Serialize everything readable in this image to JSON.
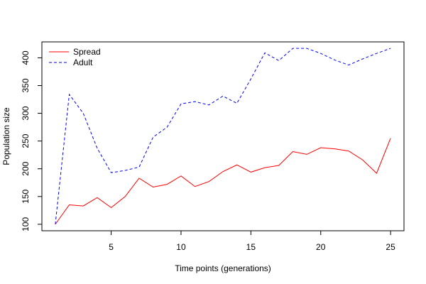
{
  "chart_data": {
    "type": "line",
    "title": "",
    "xlabel": "Time points (generations)",
    "ylabel": "Population size",
    "xlim": [
      0.04,
      25.96
    ],
    "ylim": [
      88.3,
      428.7
    ],
    "x_ticks": [
      5,
      10,
      15,
      20,
      25
    ],
    "y_ticks": [
      100,
      150,
      200,
      250,
      300,
      350,
      400
    ],
    "grid": false,
    "legend_position": "top-left",
    "x": [
      1,
      2,
      3,
      4,
      5,
      6,
      7,
      8,
      9,
      10,
      11,
      12,
      13,
      14,
      15,
      16,
      17,
      18,
      19,
      20,
      21,
      22,
      23,
      24,
      25
    ],
    "series": [
      {
        "name": "Spread",
        "color": "#ff0000",
        "dash": "solid",
        "values": [
          100,
          135,
          133,
          148,
          130,
          150,
          183,
          167,
          172,
          187,
          168,
          177,
          195,
          207,
          194,
          202,
          206,
          231,
          226,
          238,
          236,
          232,
          216,
          192,
          255
        ]
      },
      {
        "name": "Adult",
        "color": "#0000ff",
        "dash": "dashed",
        "values": [
          100,
          334,
          300,
          237,
          193,
          197,
          203,
          257,
          275,
          317,
          321,
          315,
          331,
          318,
          362,
          409,
          395,
          417,
          417,
          408,
          396,
          387,
          398,
          408,
          417
        ]
      }
    ]
  }
}
